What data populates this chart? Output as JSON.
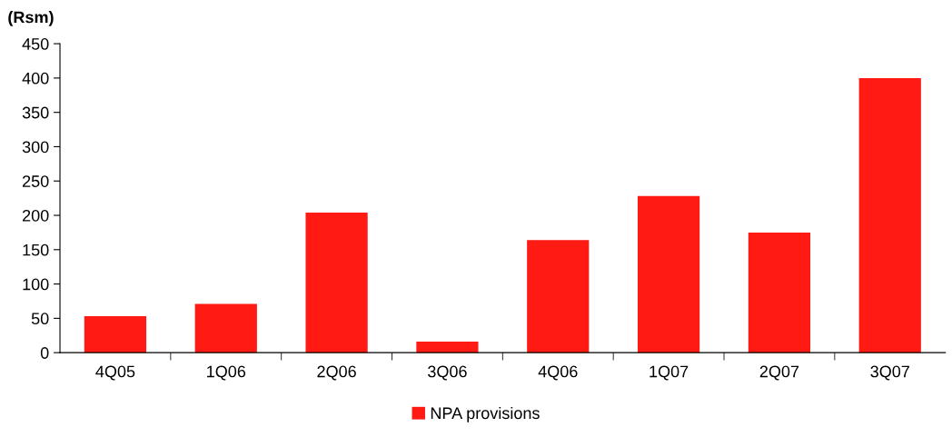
{
  "chart_data": {
    "type": "bar",
    "ylabel": "(Rsm)",
    "categories": [
      "4Q05",
      "1Q06",
      "2Q06",
      "3Q06",
      "4Q06",
      "1Q07",
      "2Q07",
      "3Q07"
    ],
    "series": [
      {
        "name": "NPA provisions",
        "color": "#ff1a14",
        "values": [
          53,
          71,
          204,
          16,
          164,
          228,
          175,
          400
        ]
      }
    ],
    "ylim": [
      0,
      450
    ],
    "yticks": [
      0,
      50,
      100,
      150,
      200,
      250,
      300,
      350,
      400,
      450
    ],
    "grid": false,
    "legend": "bottom"
  }
}
